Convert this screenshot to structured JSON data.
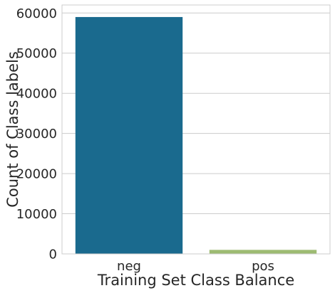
{
  "chart_data": {
    "type": "bar",
    "categories": [
      "neg",
      "pos"
    ],
    "values": [
      59000,
      1000
    ],
    "xlabel": "Training Set Class Balance",
    "ylabel": "Count of Class labels",
    "ylim": [
      0,
      62000
    ],
    "yticks": [
      0,
      10000,
      20000,
      30000,
      40000,
      50000,
      60000
    ],
    "grid": "horizontal",
    "colors": [
      "#1a6a8e",
      "#9dbb72"
    ],
    "gridline_color": "#cccccc",
    "spine_color": "#cccccc"
  }
}
